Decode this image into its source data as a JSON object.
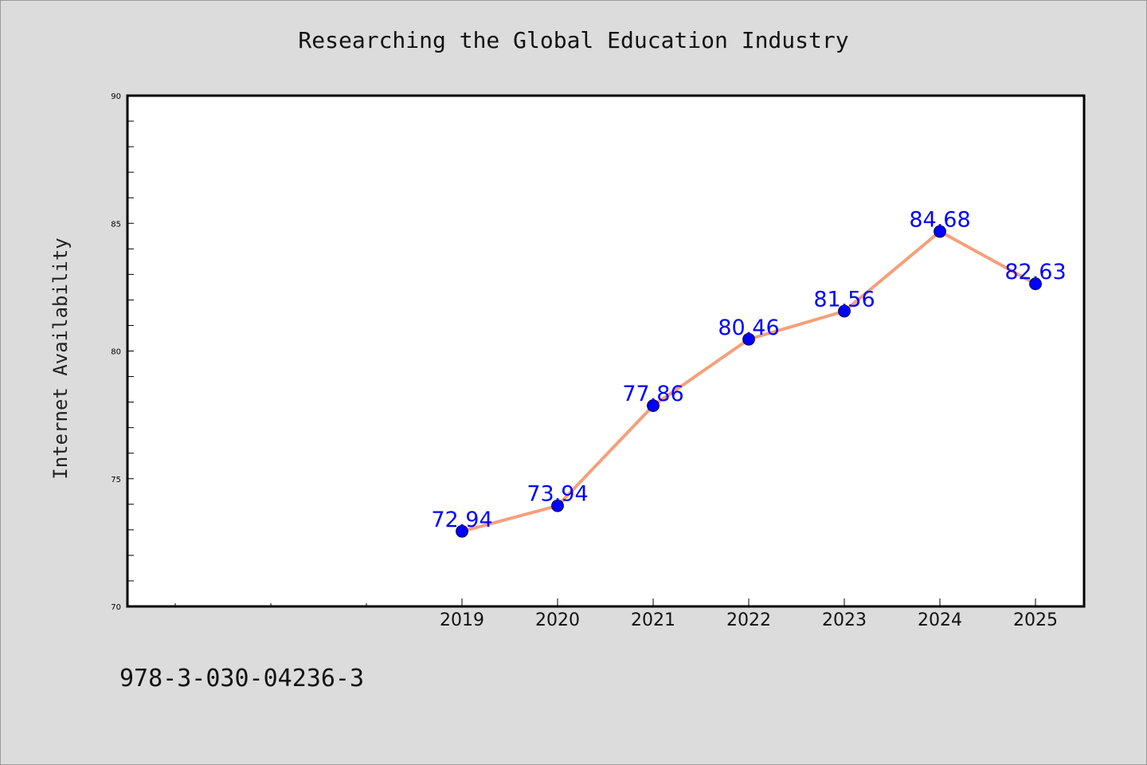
{
  "chart_data": {
    "type": "line",
    "title": "Researching the Global Education Industry",
    "xlabel": "",
    "ylabel": "Internet Availability",
    "ylim": [
      70,
      90
    ],
    "yticks": [
      70,
      75,
      80,
      85,
      90
    ],
    "categories": [
      "2019",
      "2020",
      "2021",
      "2022",
      "2023",
      "2024",
      "2025"
    ],
    "series": [
      {
        "values": [
          72.94,
          73.94,
          77.86,
          80.46,
          81.56,
          84.68,
          82.63
        ]
      }
    ],
    "data_labels": [
      "72.94",
      "73.94",
      "77.86",
      "80.46",
      "81.56",
      "84.68",
      "82.63"
    ],
    "grid": false,
    "colors": {
      "line": "#f4a07c",
      "marker": "#0000ff",
      "label": "#0000ff",
      "plot_bg": "#ffffff",
      "page_bg": "#dcdcdc"
    }
  },
  "footer": {
    "isbn": "978-3-030-04236-3"
  }
}
